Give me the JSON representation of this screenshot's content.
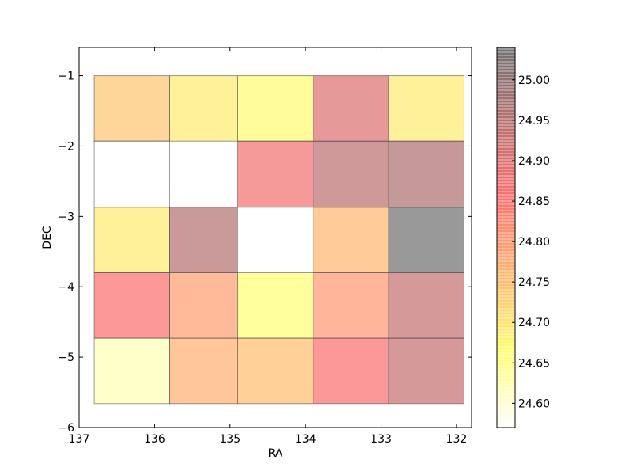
{
  "chart_data": {
    "type": "heatmap",
    "xlabel": "RA",
    "ylabel": "DEC",
    "xlim": [
      137.0,
      131.8
    ],
    "ylim": [
      -6.0,
      -0.6
    ],
    "x_ticks": [
      "137",
      "136",
      "135",
      "134",
      "133",
      "132"
    ],
    "y_ticks": [
      "−1",
      "−2",
      "−3",
      "−4",
      "−5",
      "−6"
    ],
    "x_tick_values": [
      137,
      136,
      135,
      134,
      133,
      132
    ],
    "y_tick_values": [
      -1,
      -2,
      -3,
      -4,
      -5,
      -6
    ],
    "ra_bins": [
      136.8,
      135.8,
      134.9,
      133.9,
      132.9,
      131.9
    ],
    "dec_bins": [
      -1.0,
      -1.93,
      -2.87,
      -3.8,
      -4.73,
      -5.66
    ],
    "cell_values": [
      [
        24.74,
        24.69,
        24.67,
        24.9,
        24.69
      ],
      [
        24.57,
        null,
        24.87,
        24.94,
        24.96
      ],
      [
        24.69,
        24.95,
        null,
        24.76,
        25.04
      ],
      [
        24.86,
        24.79,
        24.66,
        24.8,
        24.93
      ],
      [
        24.62,
        24.77,
        24.75,
        24.86,
        24.93
      ]
    ],
    "colorbar": {
      "min": 24.57,
      "max": 25.04,
      "ticks": [
        24.6,
        24.65,
        24.7,
        24.75,
        24.8,
        24.85,
        24.9,
        24.95,
        25.0
      ],
      "tick_labels": [
        "24.60",
        "24.65",
        "24.70",
        "24.75",
        "24.80",
        "24.85",
        "24.90",
        "24.95",
        "25.00"
      ],
      "colormap_stops": [
        "#ffffff",
        "#ffff00",
        "#ff8000",
        "#ff0000",
        "#800000",
        "#000000"
      ]
    },
    "alpha": 0.4,
    "grid": false
  }
}
